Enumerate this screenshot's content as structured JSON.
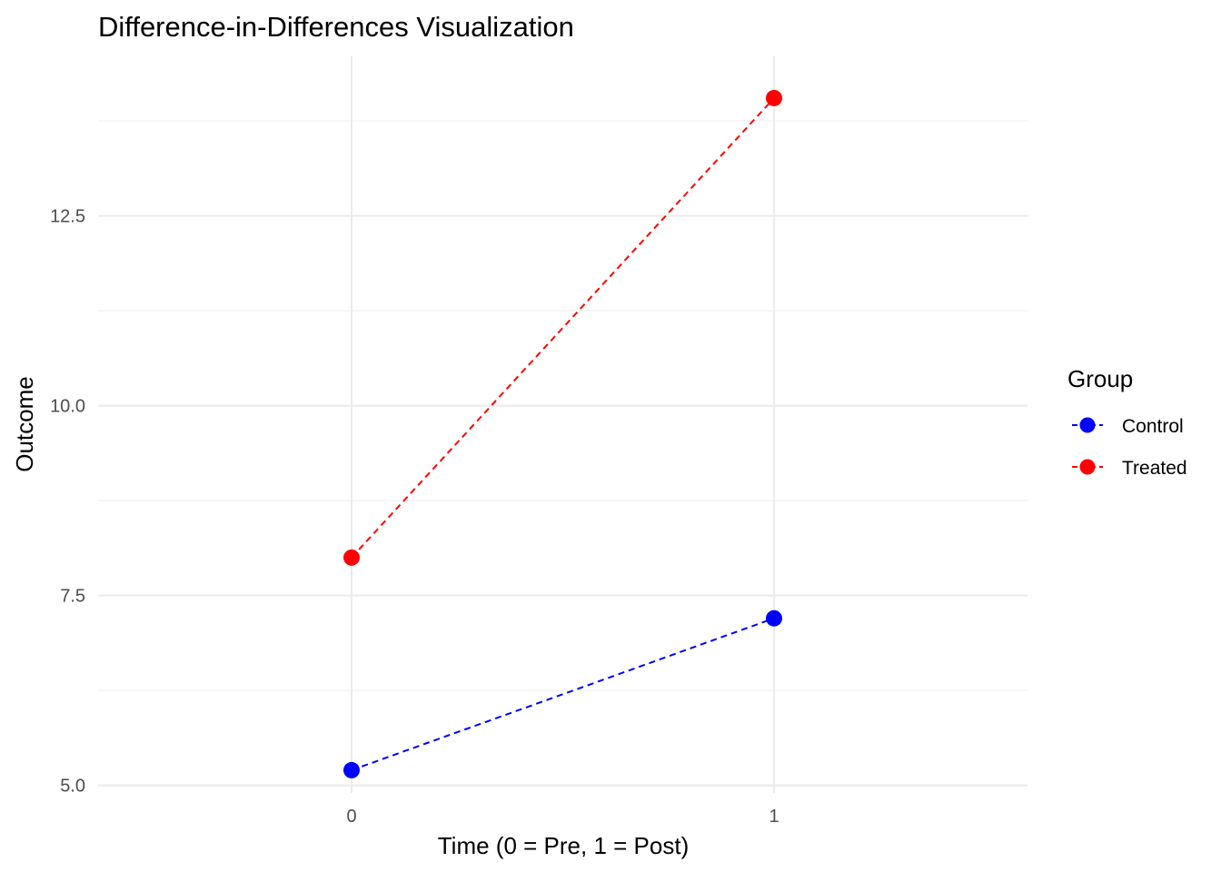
{
  "chart_data": {
    "type": "line",
    "title": "Difference-in-Differences Visualization",
    "xlabel": "Time (0 = Pre, 1 = Post)",
    "ylabel": "Outcome",
    "x": [
      0,
      1
    ],
    "x_tick_labels": [
      "0",
      "1"
    ],
    "y_tick_labels": [
      "5.0",
      "7.5",
      "10.0",
      "12.5"
    ],
    "y_ticks": [
      5.0,
      7.5,
      10.0,
      12.5
    ],
    "xlim": [
      -0.6,
      1.6
    ],
    "ylim": [
      4.9,
      14.6
    ],
    "grid": true,
    "legend": {
      "title": "Group",
      "placement": "right"
    },
    "series": [
      {
        "name": "Control",
        "color": "#0000ff",
        "line_style": "dashed",
        "values": [
          5.2,
          7.2
        ]
      },
      {
        "name": "Treated",
        "color": "#ff0000",
        "line_style": "dashed",
        "values": [
          8.0,
          14.05
        ]
      }
    ]
  }
}
